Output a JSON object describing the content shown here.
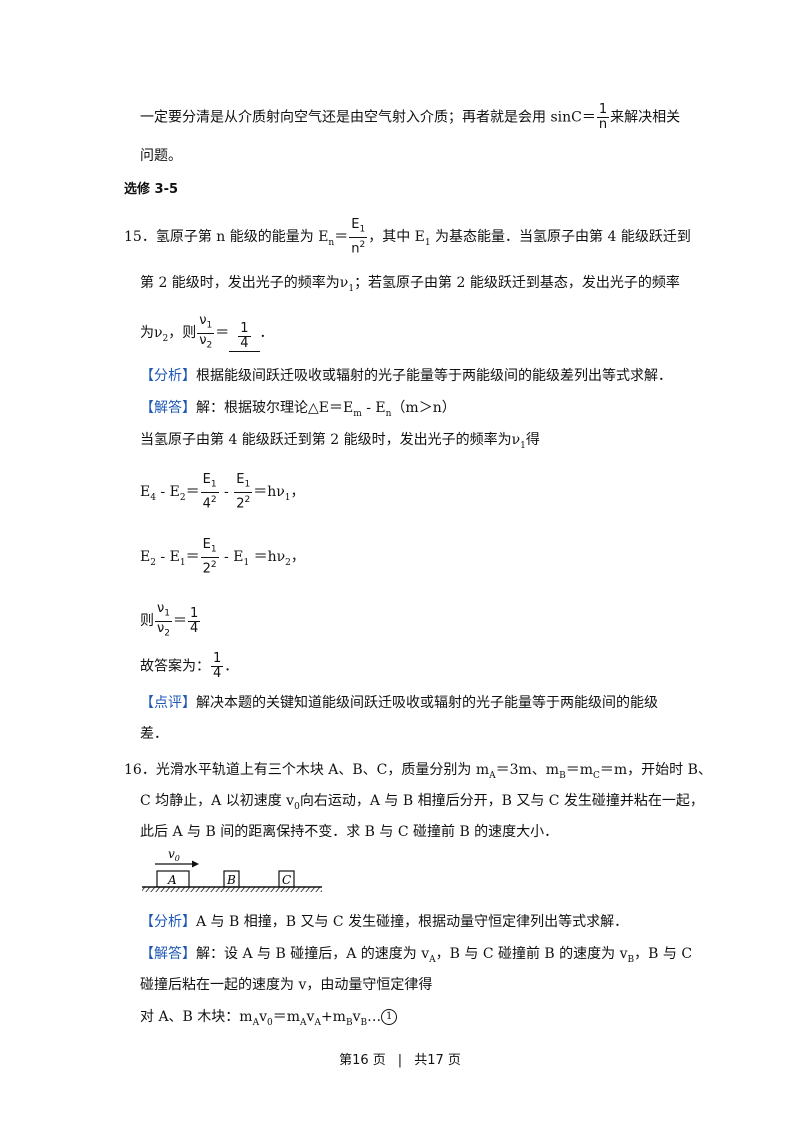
{
  "intro": {
    "part1": "一定要分清是从介质射向空气还是由空气射入介质；再者就是会用 sinC＝",
    "frac_num": "1",
    "frac_den": "n",
    "part2": "来解决相关",
    "line2": "问题。"
  },
  "section": {
    "title": "选修 3-5"
  },
  "q15": {
    "number": "15．",
    "stem_a": "氢原子第 n 能级的能量为 E",
    "stem_a_sub": "n",
    "stem_eq": "＝",
    "stem_frac_num": "E",
    "stem_frac_num_sub": "1",
    "stem_frac_den": "n",
    "stem_frac_den_sup": "2",
    "stem_b": "，其中 E",
    "stem_b_sub": "1",
    "stem_c": " 为基态能量．当氢原子由第 4 能级跃迁到",
    "line2": "第 2 能级时，发出光子的频率为ν",
    "line2_sub": "1",
    "line2_b": "；若氢原子由第 2 能级跃迁到基态，发出光子的频率",
    "line3_a": "为ν",
    "line3_sub": "2",
    "line3_b": "，则",
    "ratio_num": "ν",
    "ratio_num_sub": "1",
    "ratio_den": "ν",
    "ratio_den_sub": "2",
    "ratio_eq": "＝",
    "answer_num": "1",
    "answer_den": "4",
    "answer_end": "．",
    "analysis_tag": "【分析】",
    "analysis_text": "根据能级间跃迁吸收或辐射的光子能量等于两能级间的能级差列出等式求解．",
    "solution_tag": "【解答】",
    "solution_text_a": "解：根据玻尔理论△E＝E",
    "solution_sub_m": "m",
    "solution_text_b": " - E",
    "solution_sub_n": "n",
    "solution_text_c": "（m＞n）",
    "step1": "当氢原子由第 4 能级跃迁到第 2 能级时，发出光子的频率为ν",
    "step1_sub": "1",
    "step1_end": "得",
    "eq1_a": "E",
    "eq1_a_sub": "4",
    "eq1_b": " - E",
    "eq1_b_sub": "2",
    "eq1_c": "＝",
    "eq1_f1_num": "E",
    "eq1_f1_num_sub": "1",
    "eq1_f1_den": "4",
    "eq1_f1_den_sup": "2",
    "eq1_d": " - ",
    "eq1_f2_num": "E",
    "eq1_f2_num_sub": "1",
    "eq1_f2_den": "2",
    "eq1_f2_den_sup": "2",
    "eq1_e": "＝hν",
    "eq1_e_sub": "1",
    "eq1_end": "，",
    "eq2_a": "E",
    "eq2_a_sub": "2",
    "eq2_b": " - E",
    "eq2_b_sub": "1",
    "eq2_c": "＝",
    "eq2_f_num": "E",
    "eq2_f_num_sub": "1",
    "eq2_f_den": "2",
    "eq2_f_den_sup": "2",
    "eq2_d": " - E",
    "eq2_d_sub": "1",
    "eq2_e": " ＝hν",
    "eq2_e_sub": "2",
    "eq2_end": "，",
    "eq3_a": "则",
    "eq3_num": "ν",
    "eq3_num_sub": "1",
    "eq3_den": "ν",
    "eq3_den_sub": "2",
    "eq3_eq": "＝",
    "eq3_rnum": "1",
    "eq3_rden": "4",
    "final_a": "故答案为：",
    "final_num": "1",
    "final_den": "4",
    "final_end": "．",
    "comment_tag": "【点评】",
    "comment_text": "解决本题的关键知道能级间跃迁吸收或辐射的光子能量等于两能级间的能级",
    "comment_line2": "差．"
  },
  "q16": {
    "number": "16．",
    "line1_a": "光滑水平轨道上有三个木块 A、B、C，质量分别为 m",
    "line1_sub_a": "A",
    "line1_b": "＝3m、m",
    "line1_sub_b": "B",
    "line1_c": "＝m",
    "line1_sub_c": "C",
    "line1_d": "＝m，开始时 B、",
    "line2_a": "C 均静止，A 以初速度 v",
    "line2_sub": "0",
    "line2_b": "向右运动，A 与 B 相撞后分开，B 又与 C 发生碰撞并粘在一起，",
    "line3": "此后 A 与 B 间的距离保持不变．求 B 与 C 碰撞前 B 的速度大小．",
    "figure": {
      "velocity_label": "v",
      "velocity_sub": "0",
      "block_a": "A",
      "block_b": "B",
      "block_c": "C"
    },
    "analysis_tag": "【分析】",
    "analysis_text": "A 与 B 相撞，B 又与 C 发生碰撞，根据动量守恒定律列出等式求解．",
    "solution_tag": "【解答】",
    "sol1_a": "解：设 A 与 B 碰撞后，A 的速度为 v",
    "sol1_sub_a": "A",
    "sol1_b": "，B 与 C 碰撞前 B 的速度为 v",
    "sol1_sub_b": "B",
    "sol1_c": "，B 与 C",
    "sol2": "碰撞后粘在一起的速度为 v，由动量守恒定律得",
    "sol3_a": "对 A、B 木块：m",
    "sol3_s1": "A",
    "sol3_b": "v",
    "sol3_s2": "0",
    "sol3_c": "＝m",
    "sol3_s3": "A",
    "sol3_d": "v",
    "sol3_s4": "A",
    "sol3_e": "+m",
    "sol3_s5": "B",
    "sol3_f": "v",
    "sol3_s6": "B",
    "sol3_g": "…",
    "sol3_circle": "1"
  },
  "footer": {
    "page": "第16 页",
    "sep": "|",
    "total": "共17 页"
  }
}
